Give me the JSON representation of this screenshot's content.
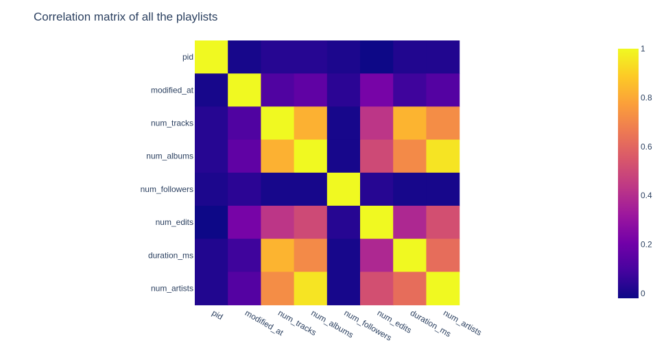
{
  "chart_data": {
    "type": "heatmap",
    "title": "Correlation matrix of all the playlists",
    "x": [
      "pid",
      "modified_at",
      "num_tracks",
      "num_albums",
      "num_followers",
      "num_edits",
      "duration_ms",
      "num_artists"
    ],
    "y": [
      "pid",
      "modified_at",
      "num_tracks",
      "num_albums",
      "num_followers",
      "num_edits",
      "duration_ms",
      "num_artists"
    ],
    "z": [
      [
        1.0,
        0.0,
        0.03,
        0.03,
        0.01,
        -0.02,
        0.02,
        0.02
      ],
      [
        0.0,
        1.0,
        0.12,
        0.16,
        0.04,
        0.22,
        0.08,
        0.13
      ],
      [
        0.03,
        0.12,
        1.0,
        0.82,
        0.0,
        0.43,
        0.83,
        0.72
      ],
      [
        0.03,
        0.16,
        0.82,
        1.0,
        0.0,
        0.5,
        0.71,
        0.95
      ],
      [
        0.01,
        0.04,
        0.0,
        0.0,
        1.0,
        0.03,
        0.0,
        0.0
      ],
      [
        -0.02,
        0.22,
        0.43,
        0.5,
        0.03,
        1.0,
        0.38,
        0.52
      ],
      [
        0.02,
        0.08,
        0.83,
        0.71,
        0.0,
        0.38,
        1.0,
        0.62
      ],
      [
        0.02,
        0.13,
        0.72,
        0.95,
        0.0,
        0.52,
        0.62,
        1.0
      ]
    ],
    "zlim": [
      -0.02,
      1.0
    ],
    "colorscale": [
      "#0d0887",
      "#46039f",
      "#7201a8",
      "#9c179e",
      "#bd3786",
      "#d8576b",
      "#ed7953",
      "#fb9f3a",
      "#fdca26",
      "#f0f921"
    ],
    "colorbar": {
      "ticks": [
        0,
        0.2,
        0.4,
        0.6,
        0.8,
        1
      ],
      "tick_labels": [
        "0",
        "0.2",
        "0.4",
        "0.6",
        "0.8",
        "1"
      ]
    },
    "grid": false,
    "legend": "colorbar-right"
  }
}
